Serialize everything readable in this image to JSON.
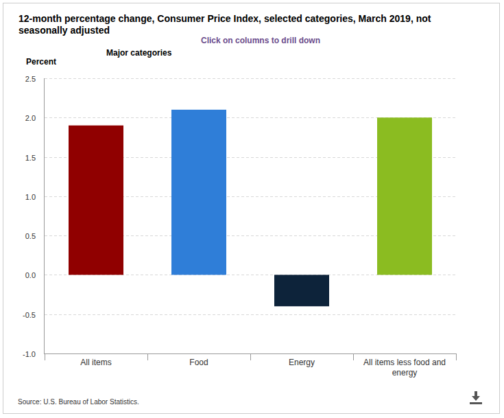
{
  "chart_data": {
    "type": "bar",
    "title": "12-month percentage change, Consumer Price Index, selected categories, March 2019, not seasonally adjusted",
    "subtitle": "Major categories",
    "annotations": [
      "Click on columns to drill down"
    ],
    "y_label": "Percent",
    "source": "Source: U.S. Bureau of Labor Statistics.",
    "categories": [
      "All items",
      "Food",
      "Energy",
      "All items less food and energy"
    ],
    "values": [
      1.9,
      2.1,
      -0.4,
      2.0
    ],
    "colors": [
      "#900000",
      "#2f7ed8",
      "#0d233a",
      "#8bbc21"
    ],
    "ylim": [
      -1,
      2.5
    ],
    "yticks": [
      {
        "value": -1,
        "label": "-1.0"
      },
      -0.5,
      {
        "value": 0,
        "label": "0.0"
      },
      0.5,
      {
        "value": 1,
        "label": "1.0"
      },
      1.5,
      {
        "value": 2,
        "label": "2.0"
      },
      2.5
    ],
    "grid": true
  }
}
